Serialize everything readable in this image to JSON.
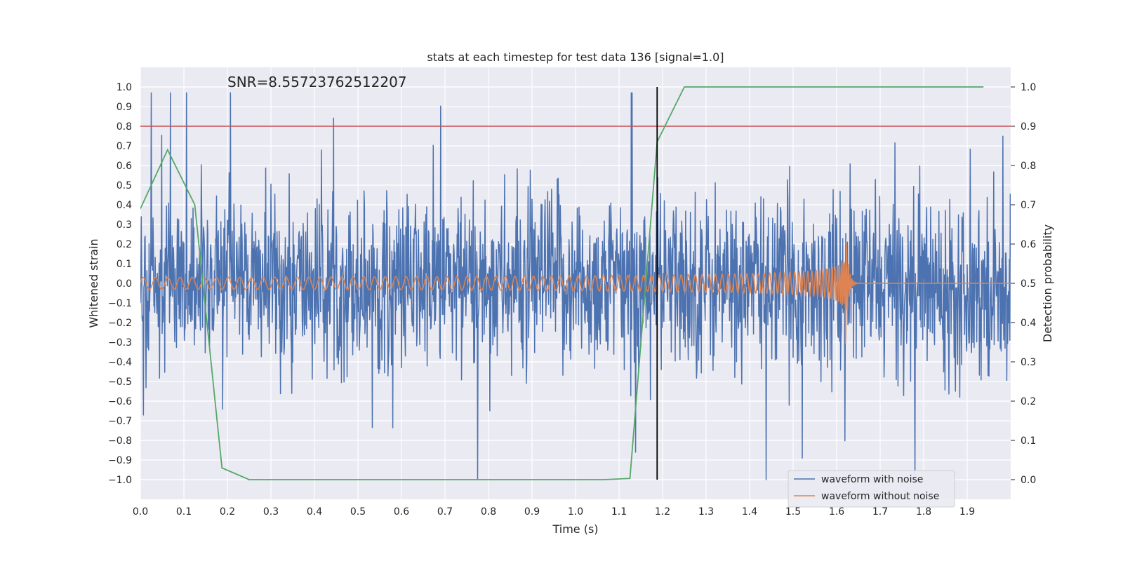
{
  "chart_data": {
    "type": "line",
    "title": "stats at each timestep for test data 136 [signal=1.0]",
    "xlabel": "Time (s)",
    "ylabel": "Whitened strain",
    "y2label": "Detection probability",
    "annotation": "SNR=8.55723762512207",
    "xlim": [
      0.0,
      2.0
    ],
    "ylim": [
      -1.1,
      1.1
    ],
    "y2lim": [
      -0.05,
      1.05
    ],
    "x_ticks": [
      0.0,
      0.1,
      0.2,
      0.3,
      0.4,
      0.5,
      0.6,
      0.7,
      0.8,
      0.9,
      1.0,
      1.1,
      1.2,
      1.3,
      1.4,
      1.5,
      1.6,
      1.7,
      1.8,
      1.9
    ],
    "x_tick_labels": [
      "0.0",
      "0.1",
      "0.2",
      "0.3",
      "0.4",
      "0.5",
      "0.6",
      "0.7",
      "0.8",
      "0.9",
      "1.0",
      "1.1",
      "1.2",
      "1.3",
      "1.4",
      "1.5",
      "1.6",
      "1.7",
      "1.8",
      "1.9"
    ],
    "y_ticks": [
      1.0,
      0.9,
      0.8,
      0.7,
      0.6,
      0.5,
      0.4,
      0.3,
      0.2,
      0.1,
      0.0,
      -0.1,
      -0.2,
      -0.3,
      -0.4,
      -0.5,
      -0.6,
      -0.7,
      -0.8,
      -0.9,
      -1.0
    ],
    "y_tick_labels": [
      "1.0",
      "0.9",
      "0.8",
      "0.7",
      "0.6",
      "0.5",
      "0.4",
      "0.3",
      "0.2",
      "0.1",
      "0.0",
      "−0.1",
      "−0.2",
      "−0.3",
      "−0.4",
      "−0.5",
      "−0.6",
      "−0.7",
      "−0.8",
      "−0.9",
      "−1.0"
    ],
    "y2_ticks": [
      1.0,
      0.9,
      0.8,
      0.7,
      0.6,
      0.5,
      0.4,
      0.3,
      0.2,
      0.1,
      0.0
    ],
    "y2_tick_labels": [
      "1.0",
      "0.9",
      "0.8",
      "0.7",
      "0.6",
      "0.5",
      "0.4",
      "0.3",
      "0.2",
      "0.1",
      "0.0"
    ],
    "grid": true,
    "legend_position": "bottom-right",
    "series": [
      {
        "name": "waveform with noise",
        "color": "#4c72b0",
        "axis": "left",
        "style": "dense noisy strain, amplitude roughly ±0.5 with spikes to ±1.0",
        "sample_rate_hz": 1000,
        "x_range": [
          0.0,
          2.0
        ]
      },
      {
        "name": "waveform without noise",
        "color": "#dd8452",
        "axis": "left",
        "style": "chirp signal ending near 1.62 s",
        "start_amplitude": 0.03,
        "peak_amplitude": 0.35,
        "merger_time": 1.62,
        "start_frequency_hz": 35,
        "end_frequency_hz": 110
      }
    ],
    "detection_probability": {
      "color": "#55a868",
      "axis": "right",
      "x": [
        0.0,
        0.0625,
        0.125,
        0.1875,
        0.25,
        0.5,
        0.75,
        1.0,
        1.0625,
        1.125,
        1.1875,
        1.25,
        1.5,
        1.75,
        1.9375
      ],
      "y": [
        0.69,
        0.84,
        0.7,
        0.03,
        0.0,
        0.0,
        0.0,
        0.0,
        0.0,
        0.003,
        0.86,
        1.0,
        1.0,
        1.0,
        1.0
      ]
    },
    "threshold_line": {
      "y2": 0.9,
      "color": "#c44e52"
    },
    "detection_marker": {
      "x": 1.1875,
      "color": "#000000"
    }
  }
}
